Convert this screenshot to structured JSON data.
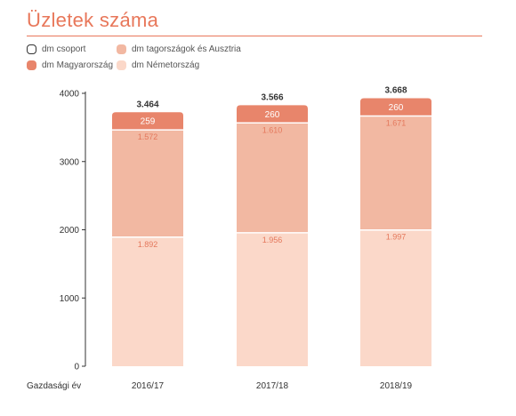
{
  "title": "Üzletek száma",
  "colors": {
    "title": "#e8775a",
    "group_outline": "#333333",
    "hungary": "#e8856b",
    "partners": "#f2b8a2",
    "germany": "#fbd8c9",
    "segment_label_dark": "#e4785c",
    "segment_label_light": "#ffffff",
    "total_label": "#333333",
    "axis_text": "#333333"
  },
  "legend": [
    {
      "label": "dm csoport",
      "key": "group"
    },
    {
      "label": "dm tagországok és Ausztria",
      "key": "partners"
    },
    {
      "label": "dm Magyarország",
      "key": "hungary"
    },
    {
      "label": "dm Németország",
      "key": "germany"
    }
  ],
  "chart_data": {
    "type": "bar",
    "stacked": true,
    "title": "Üzletek száma",
    "xlabel": "Gazdasági év",
    "ylabel": "",
    "categories": [
      "2016/17",
      "2017/18",
      "2018/19"
    ],
    "ylim": [
      0,
      4000
    ],
    "yticks": [
      0,
      1000,
      2000,
      3000,
      4000
    ],
    "grid": false,
    "legend_position": "top-left",
    "series": [
      {
        "name": "dm Németország",
        "key": "germany",
        "values": [
          1892,
          1956,
          1997
        ],
        "labels": [
          "1.892",
          "1.956",
          "1.997"
        ]
      },
      {
        "name": "dm tagországok és Ausztria",
        "key": "partners",
        "values": [
          1572,
          1610,
          1671
        ],
        "labels": [
          "1.572",
          "1.610",
          "1.671"
        ]
      },
      {
        "name": "dm Magyarország",
        "key": "hungary",
        "values": [
          259,
          260,
          260
        ],
        "labels": [
          "259",
          "260",
          "260"
        ]
      }
    ],
    "totals": {
      "name": "dm csoport",
      "values": [
        3464,
        3566,
        3668
      ],
      "labels": [
        "3.464",
        "3.566",
        "3.668"
      ]
    }
  }
}
